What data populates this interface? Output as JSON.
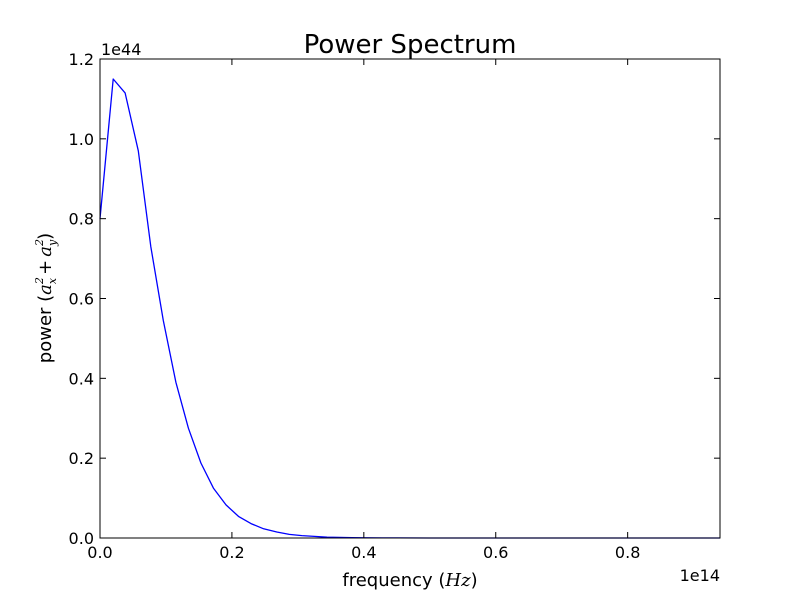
{
  "chart_data": {
    "type": "line",
    "title": "Power Spectrum",
    "xlabel_text": "frequency (",
    "xlabel_math": "Hz",
    "xlabel_close": ")",
    "ylabel_text": "power (",
    "ylabel_math": "a",
    "ylabel_plus": "+",
    "ylabel_sub_x": "x",
    "ylabel_sub_y": "y",
    "ylabel_sup": "2",
    "ylabel_close": ")",
    "x_offset_label": "1e14",
    "y_offset_label": "1e44",
    "xlim": [
      0.0,
      0.94
    ],
    "ylim": [
      0.0,
      1.2
    ],
    "x_ticks": [
      0.0,
      0.2,
      0.4,
      0.6,
      0.8
    ],
    "x_tick_labels": [
      "0.0",
      "0.2",
      "0.4",
      "0.6",
      "0.8"
    ],
    "y_ticks": [
      0.0,
      0.2,
      0.4,
      0.6,
      0.8,
      1.0,
      1.2
    ],
    "y_tick_labels": [
      "0.0",
      "0.2",
      "0.4",
      "0.6",
      "0.8",
      "1.0",
      "1.2"
    ],
    "grid": false,
    "line_color": "#0000ff",
    "series": [
      {
        "x": [
          0.0,
          0.02,
          0.038,
          0.058,
          0.077,
          0.096,
          0.115,
          0.134,
          0.153,
          0.172,
          0.191,
          0.21,
          0.229,
          0.248,
          0.268,
          0.287,
          0.306,
          0.325,
          0.344,
          0.363,
          0.382,
          0.4,
          0.45,
          0.5,
          0.55,
          0.6,
          0.65,
          0.7,
          0.75,
          0.8,
          0.85,
          0.9,
          0.94
        ],
        "y": [
          0.8,
          1.15,
          1.115,
          0.97,
          0.73,
          0.545,
          0.39,
          0.275,
          0.188,
          0.125,
          0.083,
          0.054,
          0.036,
          0.023,
          0.015,
          0.009,
          0.006,
          0.004,
          0.002,
          0.0015,
          0.001,
          0.0005,
          0.0002,
          0.0001,
          0.0,
          0.0,
          0.0,
          0.0,
          0.0,
          0.0,
          0.0,
          0.0,
          0.0
        ]
      }
    ]
  }
}
